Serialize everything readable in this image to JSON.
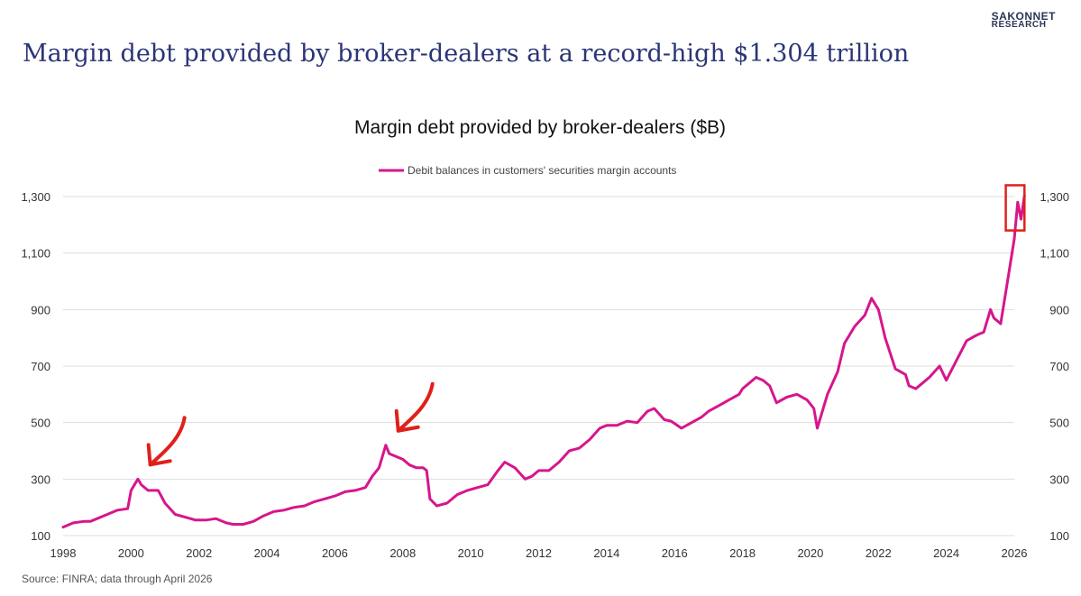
{
  "logo": {
    "line1": "SAKONNET",
    "line2": "RESEARCH"
  },
  "headline": "Margin debt provided by broker-dealers at a record-high $1.304 trillion",
  "source": "Source: FINRA; data through April 2026",
  "colors": {
    "series": "#d6168c",
    "headline": "#2b3576",
    "annotation": "#e0201b",
    "highlight_box": "#e0201b",
    "grid": "#dddddd"
  },
  "annotations": [
    {
      "type": "arrow",
      "points_to_date": 2000.3,
      "points_to_value": 300
    },
    {
      "type": "arrow",
      "points_to_date": 2007.6,
      "points_to_value": 420
    },
    {
      "type": "box",
      "date_range": [
        2025.75,
        2026.3
      ],
      "value_range": [
        1180,
        1340
      ]
    }
  ],
  "chart_data": {
    "type": "line",
    "title": "Margin debt provided by broker-dealers ($B)",
    "xlabel": "",
    "ylabel": "",
    "xlim": [
      1998,
      2026.3
    ],
    "ylim": [
      100,
      1300
    ],
    "x_ticks": [
      "1998",
      "2000",
      "2002",
      "2004",
      "2006",
      "2008",
      "2010",
      "2012",
      "2014",
      "2016",
      "2018",
      "2020",
      "2022",
      "2024",
      "2026"
    ],
    "y_ticks": [
      "100",
      "300",
      "500",
      "700",
      "900",
      "1,100",
      "1,300"
    ],
    "grid": true,
    "legend_position": "top-center",
    "series": [
      {
        "name": "Debit balances in customers' securities margin accounts",
        "x": [
          1998.0,
          1998.3,
          1998.6,
          1998.8,
          1999.0,
          1999.3,
          1999.6,
          1999.9,
          2000.0,
          2000.2,
          2000.3,
          2000.5,
          2000.8,
          2001.0,
          2001.3,
          2001.6,
          2001.9,
          2002.2,
          2002.5,
          2002.8,
          2003.0,
          2003.3,
          2003.6,
          2003.9,
          2004.2,
          2004.5,
          2004.8,
          2005.1,
          2005.4,
          2005.7,
          2006.0,
          2006.3,
          2006.6,
          2006.9,
          2007.1,
          2007.3,
          2007.5,
          2007.6,
          2007.8,
          2008.0,
          2008.2,
          2008.4,
          2008.6,
          2008.7,
          2008.8,
          2009.0,
          2009.3,
          2009.6,
          2009.9,
          2010.2,
          2010.5,
          2010.8,
          2011.0,
          2011.3,
          2011.6,
          2011.8,
          2012.0,
          2012.3,
          2012.6,
          2012.9,
          2013.2,
          2013.5,
          2013.8,
          2014.0,
          2014.3,
          2014.6,
          2014.9,
          2015.2,
          2015.4,
          2015.7,
          2015.9,
          2016.2,
          2016.5,
          2016.8,
          2017.0,
          2017.3,
          2017.6,
          2017.9,
          2018.0,
          2018.2,
          2018.4,
          2018.6,
          2018.8,
          2019.0,
          2019.3,
          2019.6,
          2019.9,
          2020.1,
          2020.2,
          2020.5,
          2020.8,
          2021.0,
          2021.3,
          2021.6,
          2021.8,
          2022.0,
          2022.2,
          2022.5,
          2022.8,
          2022.9,
          2023.1,
          2023.3,
          2023.5,
          2023.8,
          2024.0,
          2024.3,
          2024.6,
          2024.9,
          2025.1,
          2025.3,
          2025.4,
          2025.6,
          2025.8,
          2026.0,
          2026.1,
          2026.2,
          2026.3
        ],
        "values": [
          130,
          145,
          150,
          150,
          160,
          175,
          190,
          195,
          260,
          300,
          280,
          260,
          260,
          215,
          175,
          165,
          155,
          155,
          160,
          145,
          140,
          140,
          150,
          170,
          185,
          190,
          200,
          205,
          220,
          230,
          240,
          255,
          260,
          270,
          310,
          340,
          420,
          390,
          380,
          370,
          350,
          340,
          340,
          330,
          230,
          205,
          215,
          245,
          260,
          270,
          280,
          330,
          360,
          340,
          300,
          310,
          330,
          330,
          360,
          400,
          410,
          440,
          480,
          490,
          490,
          505,
          500,
          540,
          550,
          510,
          505,
          480,
          500,
          520,
          540,
          560,
          580,
          600,
          620,
          640,
          660,
          650,
          630,
          570,
          590,
          600,
          580,
          550,
          480,
          600,
          680,
          780,
          840,
          880,
          940,
          900,
          800,
          690,
          670,
          630,
          620,
          640,
          660,
          700,
          650,
          720,
          790,
          810,
          820,
          900,
          870,
          850,
          1000,
          1150,
          1280,
          1220,
          1304
        ]
      }
    ]
  }
}
